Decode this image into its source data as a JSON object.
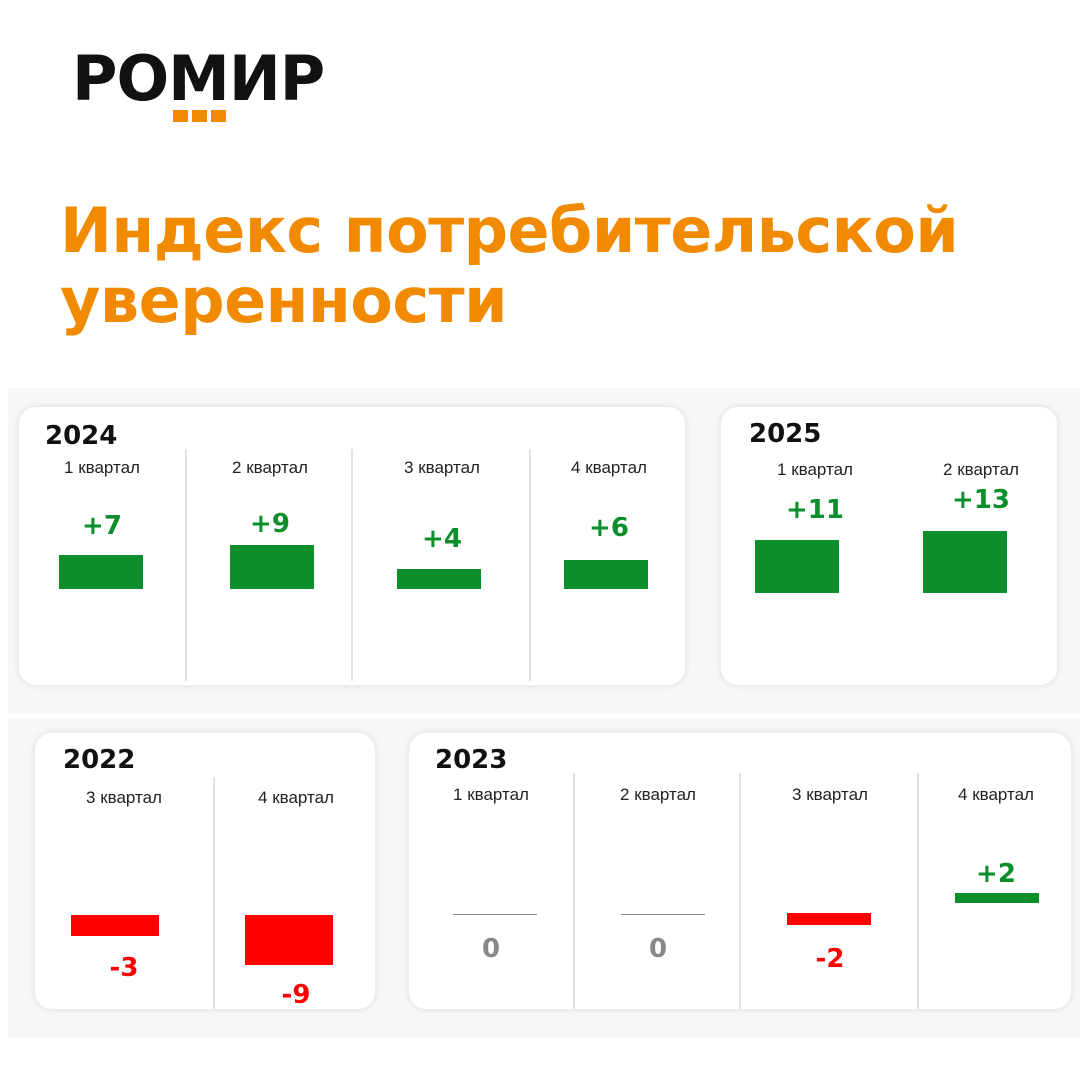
{
  "logo": {
    "text": "РОМИР"
  },
  "title": {
    "line1": "Индекс потребительской",
    "line2": "уверенности"
  },
  "colors": {
    "accent": "#f28a00",
    "positive": "#0a8f2a",
    "negative": "#ff0000",
    "neutral": "#888888"
  },
  "panels": {
    "p2024": {
      "year": "2024",
      "q": [
        "1 квартал",
        "2 квартал",
        "3 квартал",
        "4 квартал"
      ],
      "v": [
        "+7",
        "+9",
        "+4",
        "+6"
      ]
    },
    "p2025": {
      "year": "2025",
      "q": [
        "1 квартал",
        "2 квартал"
      ],
      "v": [
        "+11",
        "+13"
      ]
    },
    "p2022": {
      "year": "2022",
      "q": [
        "3 квартал",
        "4 квартал"
      ],
      "v": [
        "-3",
        "-9"
      ]
    },
    "p2023": {
      "year": "2023",
      "q": [
        "1 квартал",
        "2 квартал",
        "3 квартал",
        "4 квартал"
      ],
      "v": [
        "0",
        "0",
        "-2",
        "+2"
      ]
    }
  },
  "chart_data": {
    "type": "bar",
    "title": "Индекс потребительской уверенности",
    "categories": [
      "2022 3 квартал",
      "2022 4 квартал",
      "2023 1 квартал",
      "2023 2 квартал",
      "2023 3 квартал",
      "2023 4 квартал",
      "2024 1 квартал",
      "2024 2 квартал",
      "2024 3 квартал",
      "2024 4 квартал",
      "2025 1 квартал",
      "2025 2 квартал"
    ],
    "values": [
      -3,
      -9,
      0,
      0,
      -2,
      2,
      7,
      9,
      4,
      6,
      11,
      13
    ]
  }
}
